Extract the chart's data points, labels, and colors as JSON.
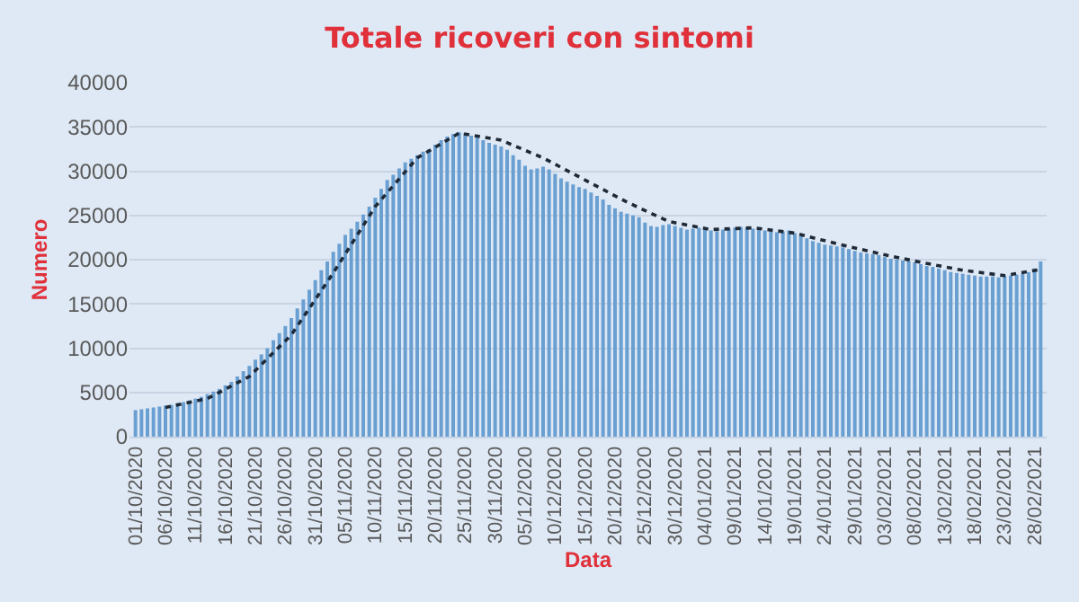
{
  "chart_data": {
    "type": "bar",
    "title": "Totale ricoveri con sintomi",
    "xlabel": "Data",
    "ylabel": "Numero",
    "x": [
      "2020-10-01",
      "2020-10-02",
      "2020-10-03",
      "2020-10-04",
      "2020-10-05",
      "2020-10-06",
      "2020-10-07",
      "2020-10-08",
      "2020-10-09",
      "2020-10-10",
      "2020-10-11",
      "2020-10-12",
      "2020-10-13",
      "2020-10-14",
      "2020-10-15",
      "2020-10-16",
      "2020-10-17",
      "2020-10-18",
      "2020-10-19",
      "2020-10-20",
      "2020-10-21",
      "2020-10-22",
      "2020-10-23",
      "2020-10-24",
      "2020-10-25",
      "2020-10-26",
      "2020-10-27",
      "2020-10-28",
      "2020-10-29",
      "2020-10-30",
      "2020-10-31",
      "2020-11-01",
      "2020-11-02",
      "2020-11-03",
      "2020-11-04",
      "2020-11-05",
      "2020-11-06",
      "2020-11-07",
      "2020-11-08",
      "2020-11-09",
      "2020-11-10",
      "2020-11-11",
      "2020-11-12",
      "2020-11-13",
      "2020-11-14",
      "2020-11-15",
      "2020-11-16",
      "2020-11-17",
      "2020-11-18",
      "2020-11-19",
      "2020-11-20",
      "2020-11-21",
      "2020-11-22",
      "2020-11-23",
      "2020-11-24",
      "2020-11-25",
      "2020-11-26",
      "2020-11-27",
      "2020-11-28",
      "2020-11-29",
      "2020-11-30",
      "2020-12-01",
      "2020-12-02",
      "2020-12-03",
      "2020-12-04",
      "2020-12-05",
      "2020-12-06",
      "2020-12-07",
      "2020-12-08",
      "2020-12-09",
      "2020-12-10",
      "2020-12-11",
      "2020-12-12",
      "2020-12-13",
      "2020-12-14",
      "2020-12-15",
      "2020-12-16",
      "2020-12-17",
      "2020-12-18",
      "2020-12-19",
      "2020-12-20",
      "2020-12-21",
      "2020-12-22",
      "2020-12-23",
      "2020-12-24",
      "2020-12-25",
      "2020-12-26",
      "2020-12-27",
      "2020-12-28",
      "2020-12-29",
      "2020-12-30",
      "2020-12-31",
      "2021-01-01",
      "2021-01-02",
      "2021-01-03",
      "2021-01-04",
      "2021-01-05",
      "2021-01-06",
      "2021-01-07",
      "2021-01-08",
      "2021-01-09",
      "2021-01-10",
      "2021-01-11",
      "2021-01-12",
      "2021-01-13",
      "2021-01-14",
      "2021-01-15",
      "2021-01-16",
      "2021-01-17",
      "2021-01-18",
      "2021-01-19",
      "2021-01-20",
      "2021-01-21",
      "2021-01-22",
      "2021-01-23",
      "2021-01-24",
      "2021-01-25",
      "2021-01-26",
      "2021-01-27",
      "2021-01-28",
      "2021-01-29",
      "2021-01-30",
      "2021-01-31",
      "2021-02-01",
      "2021-02-02",
      "2021-02-03",
      "2021-02-04",
      "2021-02-05",
      "2021-02-06",
      "2021-02-07",
      "2021-02-08",
      "2021-02-09",
      "2021-02-10",
      "2021-02-11",
      "2021-02-12",
      "2021-02-13",
      "2021-02-14",
      "2021-02-15",
      "2021-02-16",
      "2021-02-17",
      "2021-02-18",
      "2021-02-19",
      "2021-02-20",
      "2021-02-21",
      "2021-02-22",
      "2021-02-23",
      "2021-02-24",
      "2021-02-25",
      "2021-02-26",
      "2021-02-27",
      "2021-02-28",
      "2021-03-01"
    ],
    "series": [
      {
        "color": "#6a9fd2",
        "values": [
          3000,
          3100,
          3200,
          3300,
          3400,
          3500,
          3600,
          3800,
          3900,
          4100,
          4300,
          4500,
          4800,
          5100,
          5400,
          5800,
          6200,
          6800,
          7400,
          8000,
          8700,
          9300,
          10000,
          10900,
          11700,
          12500,
          13400,
          14500,
          15500,
          16600,
          17700,
          18800,
          19800,
          20900,
          21800,
          22800,
          23500,
          24300,
          25100,
          26000,
          27000,
          28000,
          29000,
          29600,
          30300,
          31000,
          31400,
          31800,
          32200,
          32500,
          33000,
          33500,
          33900,
          34200,
          34400,
          34300,
          34000,
          33800,
          33500,
          33200,
          33000,
          32800,
          32400,
          31800,
          31300,
          30600,
          30200,
          30300,
          30500,
          30200,
          29700,
          29200,
          28800,
          28500,
          28200,
          28000,
          27600,
          27200,
          26800,
          26200,
          25800,
          25400,
          25200,
          25000,
          24800,
          24200,
          23800,
          23700,
          23900,
          24000,
          23800,
          23600,
          23400,
          23500,
          23600,
          23500,
          23300,
          23200,
          23400,
          23500,
          23600,
          23700,
          23600,
          23500,
          23400,
          23300,
          23200,
          23100,
          23200,
          23300,
          23000,
          22700,
          22400,
          22100,
          21900,
          21700,
          21600,
          21500,
          21400,
          21200,
          21000,
          20800,
          20700,
          20600,
          20500,
          20300,
          20100,
          20000,
          19900,
          19800,
          19700,
          19500,
          19300,
          19200,
          19000,
          18800,
          18600,
          18500,
          18400,
          18300,
          18200,
          18100,
          18100,
          18100,
          18000,
          18100,
          18200,
          18300,
          18400,
          18600,
          19000,
          19800
        ]
      },
      {
        "type": "line",
        "color": "#1f2a38",
        "line_style": "dotted",
        "x": [
          "2020-10-06",
          "2020-10-13",
          "2020-10-20",
          "2020-10-27",
          "2020-11-03",
          "2020-11-10",
          "2020-11-17",
          "2020-11-24",
          "2020-12-01",
          "2020-12-08",
          "2020-12-15",
          "2020-12-22",
          "2020-12-29",
          "2021-01-05",
          "2021-01-12",
          "2021-01-19",
          "2021-01-26",
          "2021-02-02",
          "2021-02-09",
          "2021-02-16",
          "2021-02-23",
          "2021-03-01"
        ],
        "values": [
          3300,
          4300,
          6800,
          11500,
          18500,
          26000,
          31500,
          34300,
          33500,
          31500,
          29000,
          26500,
          24300,
          23400,
          23600,
          23000,
          21800,
          20700,
          19700,
          18800,
          18200,
          18900
        ]
      }
    ],
    "xlim": [
      "2020-09-30",
      "2021-03-02"
    ],
    "xticks": [
      {
        "value": "2020-10-01",
        "label": "01/10/2020"
      },
      {
        "value": "2020-10-06",
        "label": "06/10/2020"
      },
      {
        "value": "2020-10-11",
        "label": "11/10/2020"
      },
      {
        "value": "2020-10-16",
        "label": "16/10/2020"
      },
      {
        "value": "2020-10-21",
        "label": "21/10/2020"
      },
      {
        "value": "2020-10-26",
        "label": "26/10/2020"
      },
      {
        "value": "2020-10-31",
        "label": "31/10/2020"
      },
      {
        "value": "2020-11-05",
        "label": "05/11/2020"
      },
      {
        "value": "2020-11-10",
        "label": "10/11/2020"
      },
      {
        "value": "2020-11-15",
        "label": "15/11/2020"
      },
      {
        "value": "2020-11-20",
        "label": "20/11/2020"
      },
      {
        "value": "2020-11-25",
        "label": "25/11/2020"
      },
      {
        "value": "2020-11-30",
        "label": "30/11/2020"
      },
      {
        "value": "2020-12-05",
        "label": "05/12/2020"
      },
      {
        "value": "2020-12-10",
        "label": "10/12/2020"
      },
      {
        "value": "2020-12-15",
        "label": "15/12/2020"
      },
      {
        "value": "2020-12-20",
        "label": "20/12/2020"
      },
      {
        "value": "2020-12-25",
        "label": "25/12/2020"
      },
      {
        "value": "2020-12-30",
        "label": "30/12/2020"
      },
      {
        "value": "2021-01-04",
        "label": "04/01/2021"
      },
      {
        "value": "2021-01-09",
        "label": "09/01/2021"
      },
      {
        "value": "2021-01-14",
        "label": "14/01/2021"
      },
      {
        "value": "2021-01-19",
        "label": "19/01/2021"
      },
      {
        "value": "2021-01-24",
        "label": "24/01/2021"
      },
      {
        "value": "2021-01-29",
        "label": "29/01/2021"
      },
      {
        "value": "2021-02-03",
        "label": "03/02/2021"
      },
      {
        "value": "2021-02-08",
        "label": "08/02/2021"
      },
      {
        "value": "2021-02-13",
        "label": "13/02/2021"
      },
      {
        "value": "2021-02-18",
        "label": "18/02/2021"
      },
      {
        "value": "2021-02-23",
        "label": "23/02/2021"
      },
      {
        "value": "2021-02-28",
        "label": "28/02/2021"
      }
    ],
    "ylim": [
      0,
      40000
    ],
    "yticks": [
      0,
      5000,
      10000,
      15000,
      20000,
      25000,
      30000,
      35000,
      40000
    ],
    "grid": "y",
    "legend": false,
    "marker": "none"
  }
}
